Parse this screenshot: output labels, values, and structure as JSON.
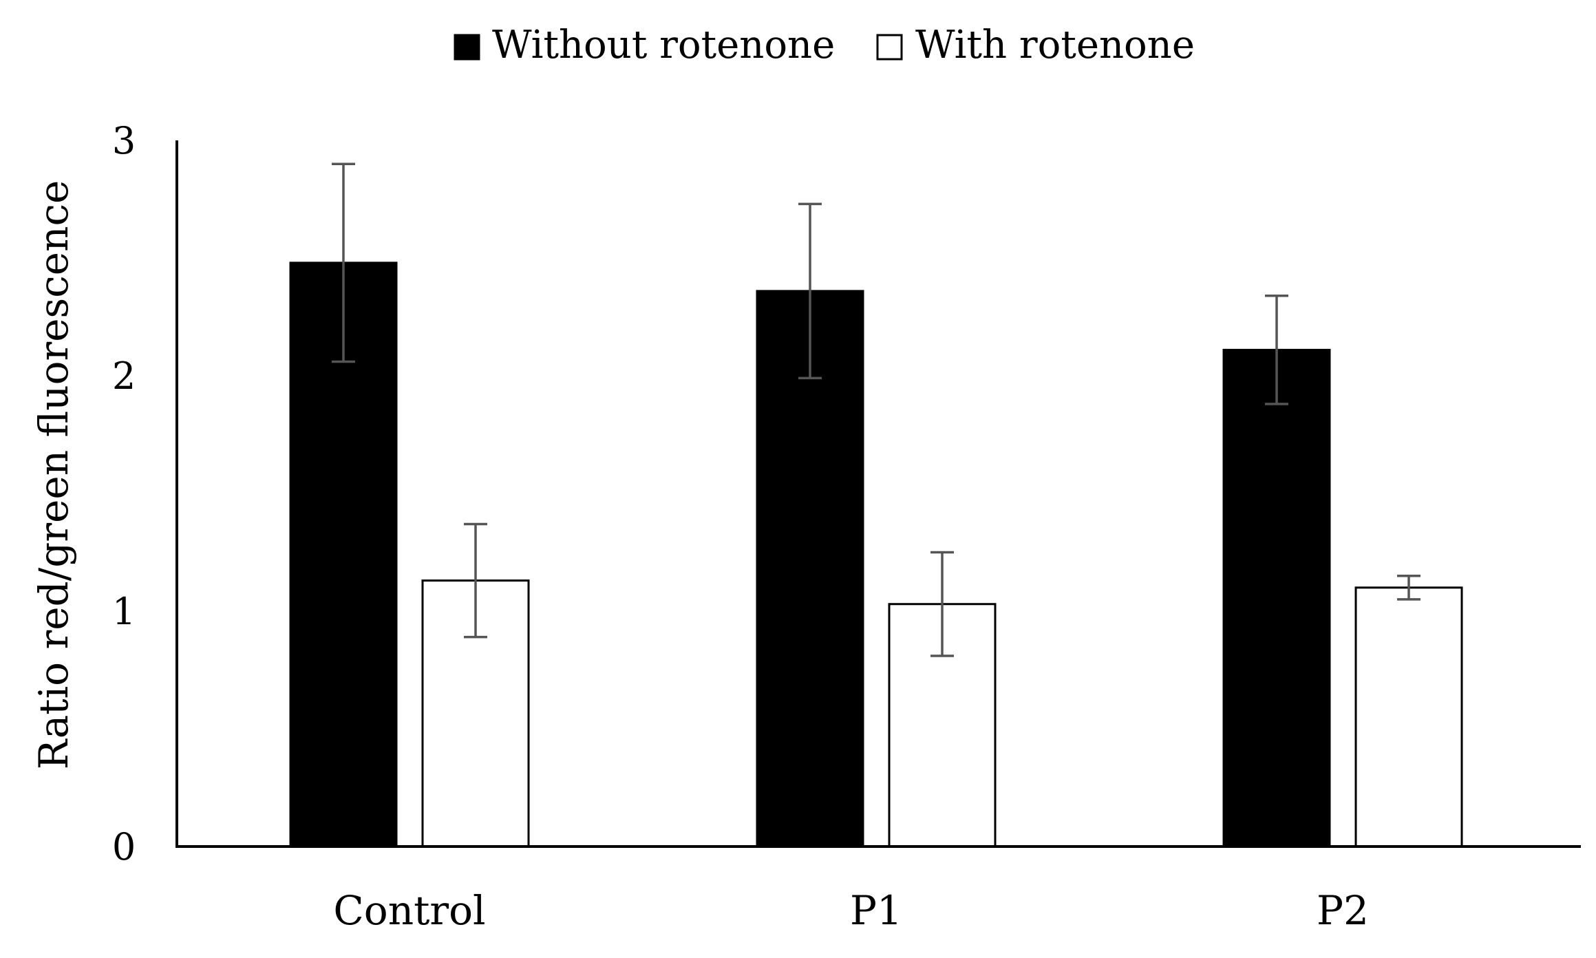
{
  "chart_data": {
    "type": "bar",
    "title": "",
    "xlabel": "",
    "ylabel": "Ratio red/green fluorescence",
    "categories": [
      "Control",
      "P1",
      "P2"
    ],
    "ylim": [
      0,
      3
    ],
    "yticks": [
      "0",
      "1",
      "2",
      "3"
    ],
    "grid": false,
    "legend_position": "top-center",
    "series": [
      {
        "name": "Without rotenone",
        "color": "#000000",
        "values": [
          2.48,
          2.36,
          2.11
        ],
        "error": [
          0.42,
          0.37,
          0.23
        ]
      },
      {
        "name": "With rotenone",
        "color": "#ffffff",
        "values": [
          1.13,
          1.03,
          1.1
        ],
        "error": [
          0.24,
          0.22,
          0.05
        ]
      }
    ]
  }
}
